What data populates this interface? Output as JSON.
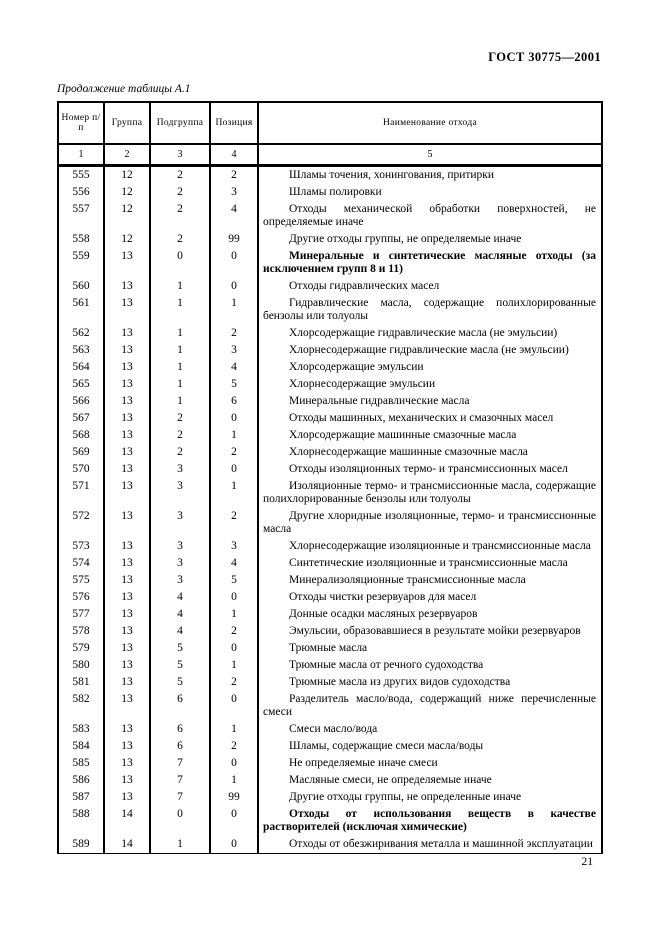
{
  "page": {
    "doc_code": "ГОСТ 30775—2001",
    "table_caption": "Продолжение таблицы А.1",
    "page_number": "21"
  },
  "table": {
    "headers": [
      "Номер п/п",
      "Группа",
      "Подгруппа",
      "Позиция",
      "Наименование отхода"
    ],
    "column_numbers": [
      "1",
      "2",
      "3",
      "4",
      "5"
    ],
    "rows": [
      {
        "num": "555",
        "group": "12",
        "subgroup": "2",
        "position": "2",
        "name": "Шламы точения, хонингования, притирки",
        "bold": false
      },
      {
        "num": "556",
        "group": "12",
        "subgroup": "2",
        "position": "3",
        "name": "Шламы полировки",
        "bold": false
      },
      {
        "num": "557",
        "group": "12",
        "subgroup": "2",
        "position": "4",
        "name": "Отходы механической обработки поверхностей, не определяемые иначе",
        "bold": false
      },
      {
        "num": "558",
        "group": "12",
        "subgroup": "2",
        "position": "99",
        "name": "Другие отходы группы, не определяемые иначе",
        "bold": false
      },
      {
        "num": "559",
        "group": "13",
        "subgroup": "0",
        "position": "0",
        "name": "Минеральные и синтетические масляные отходы (за исключением групп 8 и 11)",
        "bold": true
      },
      {
        "num": "560",
        "group": "13",
        "subgroup": "1",
        "position": "0",
        "name": "Отходы гидравлических масел",
        "bold": false
      },
      {
        "num": "561",
        "group": "13",
        "subgroup": "1",
        "position": "1",
        "name": "Гидравлические масла, содержащие полихлорированные бензолы или толуолы",
        "bold": false
      },
      {
        "num": "562",
        "group": "13",
        "subgroup": "1",
        "position": "2",
        "name": "Хлорсодержащие гидравлические масла (не эмульсии)",
        "bold": false
      },
      {
        "num": "563",
        "group": "13",
        "subgroup": "1",
        "position": "3",
        "name": "Хлорнесодержащие гидравлические масла (не эмульсии)",
        "bold": false
      },
      {
        "num": "564",
        "group": "13",
        "subgroup": "1",
        "position": "4",
        "name": "Хлорсодержащие эмульсии",
        "bold": false
      },
      {
        "num": "565",
        "group": "13",
        "subgroup": "1",
        "position": "5",
        "name": "Хлорнесодержащие эмульсии",
        "bold": false
      },
      {
        "num": "566",
        "group": "13",
        "subgroup": "1",
        "position": "6",
        "name": "Минеральные гидравлические масла",
        "bold": false
      },
      {
        "num": "567",
        "group": "13",
        "subgroup": "2",
        "position": "0",
        "name": "Отходы машинных, механических и смазочных масел",
        "bold": false
      },
      {
        "num": "568",
        "group": "13",
        "subgroup": "2",
        "position": "1",
        "name": "Хлорсодержащие машинные смазочные масла",
        "bold": false
      },
      {
        "num": "569",
        "group": "13",
        "subgroup": "2",
        "position": "2",
        "name": "Хлорнесодержащие машинные смазочные масла",
        "bold": false
      },
      {
        "num": "570",
        "group": "13",
        "subgroup": "3",
        "position": "0",
        "name": "Отходы изоляционных термо- и трансмиссионных масел",
        "bold": false
      },
      {
        "num": "571",
        "group": "13",
        "subgroup": "3",
        "position": "1",
        "name": "Изоляционные термо- и трансмиссионные масла, содержащие полихлорированные бензолы или толуолы",
        "bold": false
      },
      {
        "num": "572",
        "group": "13",
        "subgroup": "3",
        "position": "2",
        "name": "Другие хлоридные изоляционные, термо- и трансмиссионные масла",
        "bold": false
      },
      {
        "num": "573",
        "group": "13",
        "subgroup": "3",
        "position": "3",
        "name": "Хлорнесодержащие изоляционные и трансмиссионные масла",
        "bold": false
      },
      {
        "num": "574",
        "group": "13",
        "subgroup": "3",
        "position": "4",
        "name": "Синтетические изоляционные и трансмиссионные масла",
        "bold": false
      },
      {
        "num": "575",
        "group": "13",
        "subgroup": "3",
        "position": "5",
        "name": "Минерализоляционные трансмиссионные масла",
        "bold": false
      },
      {
        "num": "576",
        "group": "13",
        "subgroup": "4",
        "position": "0",
        "name": "Отходы чистки резервуаров для масел",
        "bold": false
      },
      {
        "num": "577",
        "group": "13",
        "subgroup": "4",
        "position": "1",
        "name": "Донные осадки масляных резервуаров",
        "bold": false
      },
      {
        "num": "578",
        "group": "13",
        "subgroup": "4",
        "position": "2",
        "name": "Эмульсии, образовавшиеся в результате мойки резервуаров",
        "bold": false
      },
      {
        "num": "579",
        "group": "13",
        "subgroup": "5",
        "position": "0",
        "name": "Трюмные масла",
        "bold": false
      },
      {
        "num": "580",
        "group": "13",
        "subgroup": "5",
        "position": "1",
        "name": "Трюмные масла от речного судоходства",
        "bold": false
      },
      {
        "num": "581",
        "group": "13",
        "subgroup": "5",
        "position": "2",
        "name": "Трюмные масла из других видов судоходства",
        "bold": false
      },
      {
        "num": "582",
        "group": "13",
        "subgroup": "6",
        "position": "0",
        "name": "Разделитель масло/вода, содержащий ниже перечисленные смеси",
        "bold": false
      },
      {
        "num": "583",
        "group": "13",
        "subgroup": "6",
        "position": "1",
        "name": "Смеси масло/вода",
        "bold": false
      },
      {
        "num": "584",
        "group": "13",
        "subgroup": "6",
        "position": "2",
        "name": "Шламы, содержащие смеси масла/воды",
        "bold": false
      },
      {
        "num": "585",
        "group": "13",
        "subgroup": "7",
        "position": "0",
        "name": "Не определяемые иначе смеси",
        "bold": false
      },
      {
        "num": "586",
        "group": "13",
        "subgroup": "7",
        "position": "1",
        "name": "Масляные смеси, не определяемые иначе",
        "bold": false
      },
      {
        "num": "587",
        "group": "13",
        "subgroup": "7",
        "position": "99",
        "name": "Другие отходы группы, не определенные иначе",
        "bold": false
      },
      {
        "num": "588",
        "group": "14",
        "subgroup": "0",
        "position": "0",
        "name": "Отходы от использования веществ в качестве растворителей (исключая химические)",
        "bold": true
      },
      {
        "num": "589",
        "group": "14",
        "subgroup": "1",
        "position": "0",
        "name": "Отходы от обезжиривания металла и машинной эксплуатации",
        "bold": false
      }
    ]
  }
}
